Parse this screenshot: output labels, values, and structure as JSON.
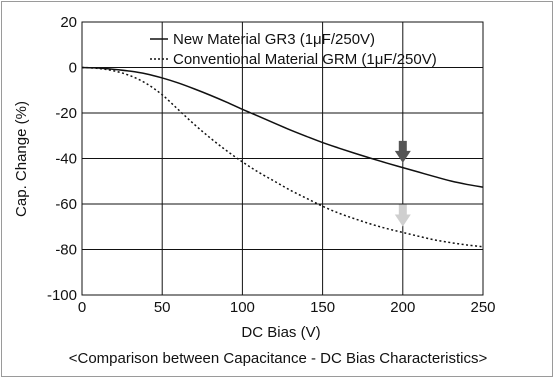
{
  "chart_data": {
    "type": "line",
    "title": "",
    "caption": "<Comparison between Capacitance - DC Bias Characteristics>",
    "xlabel": "DC Bias (V)",
    "ylabel": "Cap. Change (%)",
    "xlim": [
      0,
      250
    ],
    "ylim": [
      -100,
      20
    ],
    "xticks": [
      0,
      50,
      100,
      150,
      200,
      250
    ],
    "yticks": [
      20,
      0,
      -20,
      -40,
      -60,
      -80,
      -100
    ],
    "grid": true,
    "legend_position": "top-right",
    "series": [
      {
        "name": "New Material GR3 (1μF/250V)",
        "style": "solid",
        "color": "#111111",
        "x": [
          0,
          10,
          20,
          30,
          40,
          50,
          60,
          70,
          80,
          90,
          100,
          110,
          120,
          130,
          140,
          150,
          160,
          170,
          180,
          190,
          200,
          210,
          220,
          230,
          240,
          250
        ],
        "y": [
          0,
          -0.2,
          -0.8,
          -1.6,
          -2.8,
          -4.6,
          -6.8,
          -9.4,
          -12.2,
          -15.2,
          -18.4,
          -21.4,
          -24.5,
          -27.5,
          -30.3,
          -33.0,
          -35.4,
          -37.7,
          -39.9,
          -42.0,
          -44.0,
          -46.0,
          -48.0,
          -49.9,
          -51.4,
          -52.6
        ]
      },
      {
        "name": "Conventional Material GRM (1μF/250V)",
        "style": "dotted",
        "color": "#111111",
        "x": [
          0,
          10,
          20,
          30,
          40,
          50,
          60,
          70,
          80,
          90,
          100,
          110,
          120,
          130,
          140,
          150,
          160,
          170,
          180,
          190,
          200,
          210,
          220,
          230,
          240,
          250
        ],
        "y": [
          0,
          -0.4,
          -1.5,
          -3.6,
          -7.0,
          -12.0,
          -18.5,
          -25.0,
          -31.0,
          -36.5,
          -41.5,
          -46.0,
          -50.0,
          -54.0,
          -57.5,
          -61.0,
          -64.0,
          -66.5,
          -68.8,
          -70.8,
          -72.5,
          -74.2,
          -75.8,
          -77.0,
          -78.0,
          -78.8
        ]
      }
    ],
    "annotations": [
      {
        "type": "arrow",
        "x": 200,
        "y": -37.5,
        "color": "#555555"
      },
      {
        "type": "arrow",
        "x": 200,
        "y": -65.5,
        "color": "#cfcfcf"
      }
    ]
  }
}
